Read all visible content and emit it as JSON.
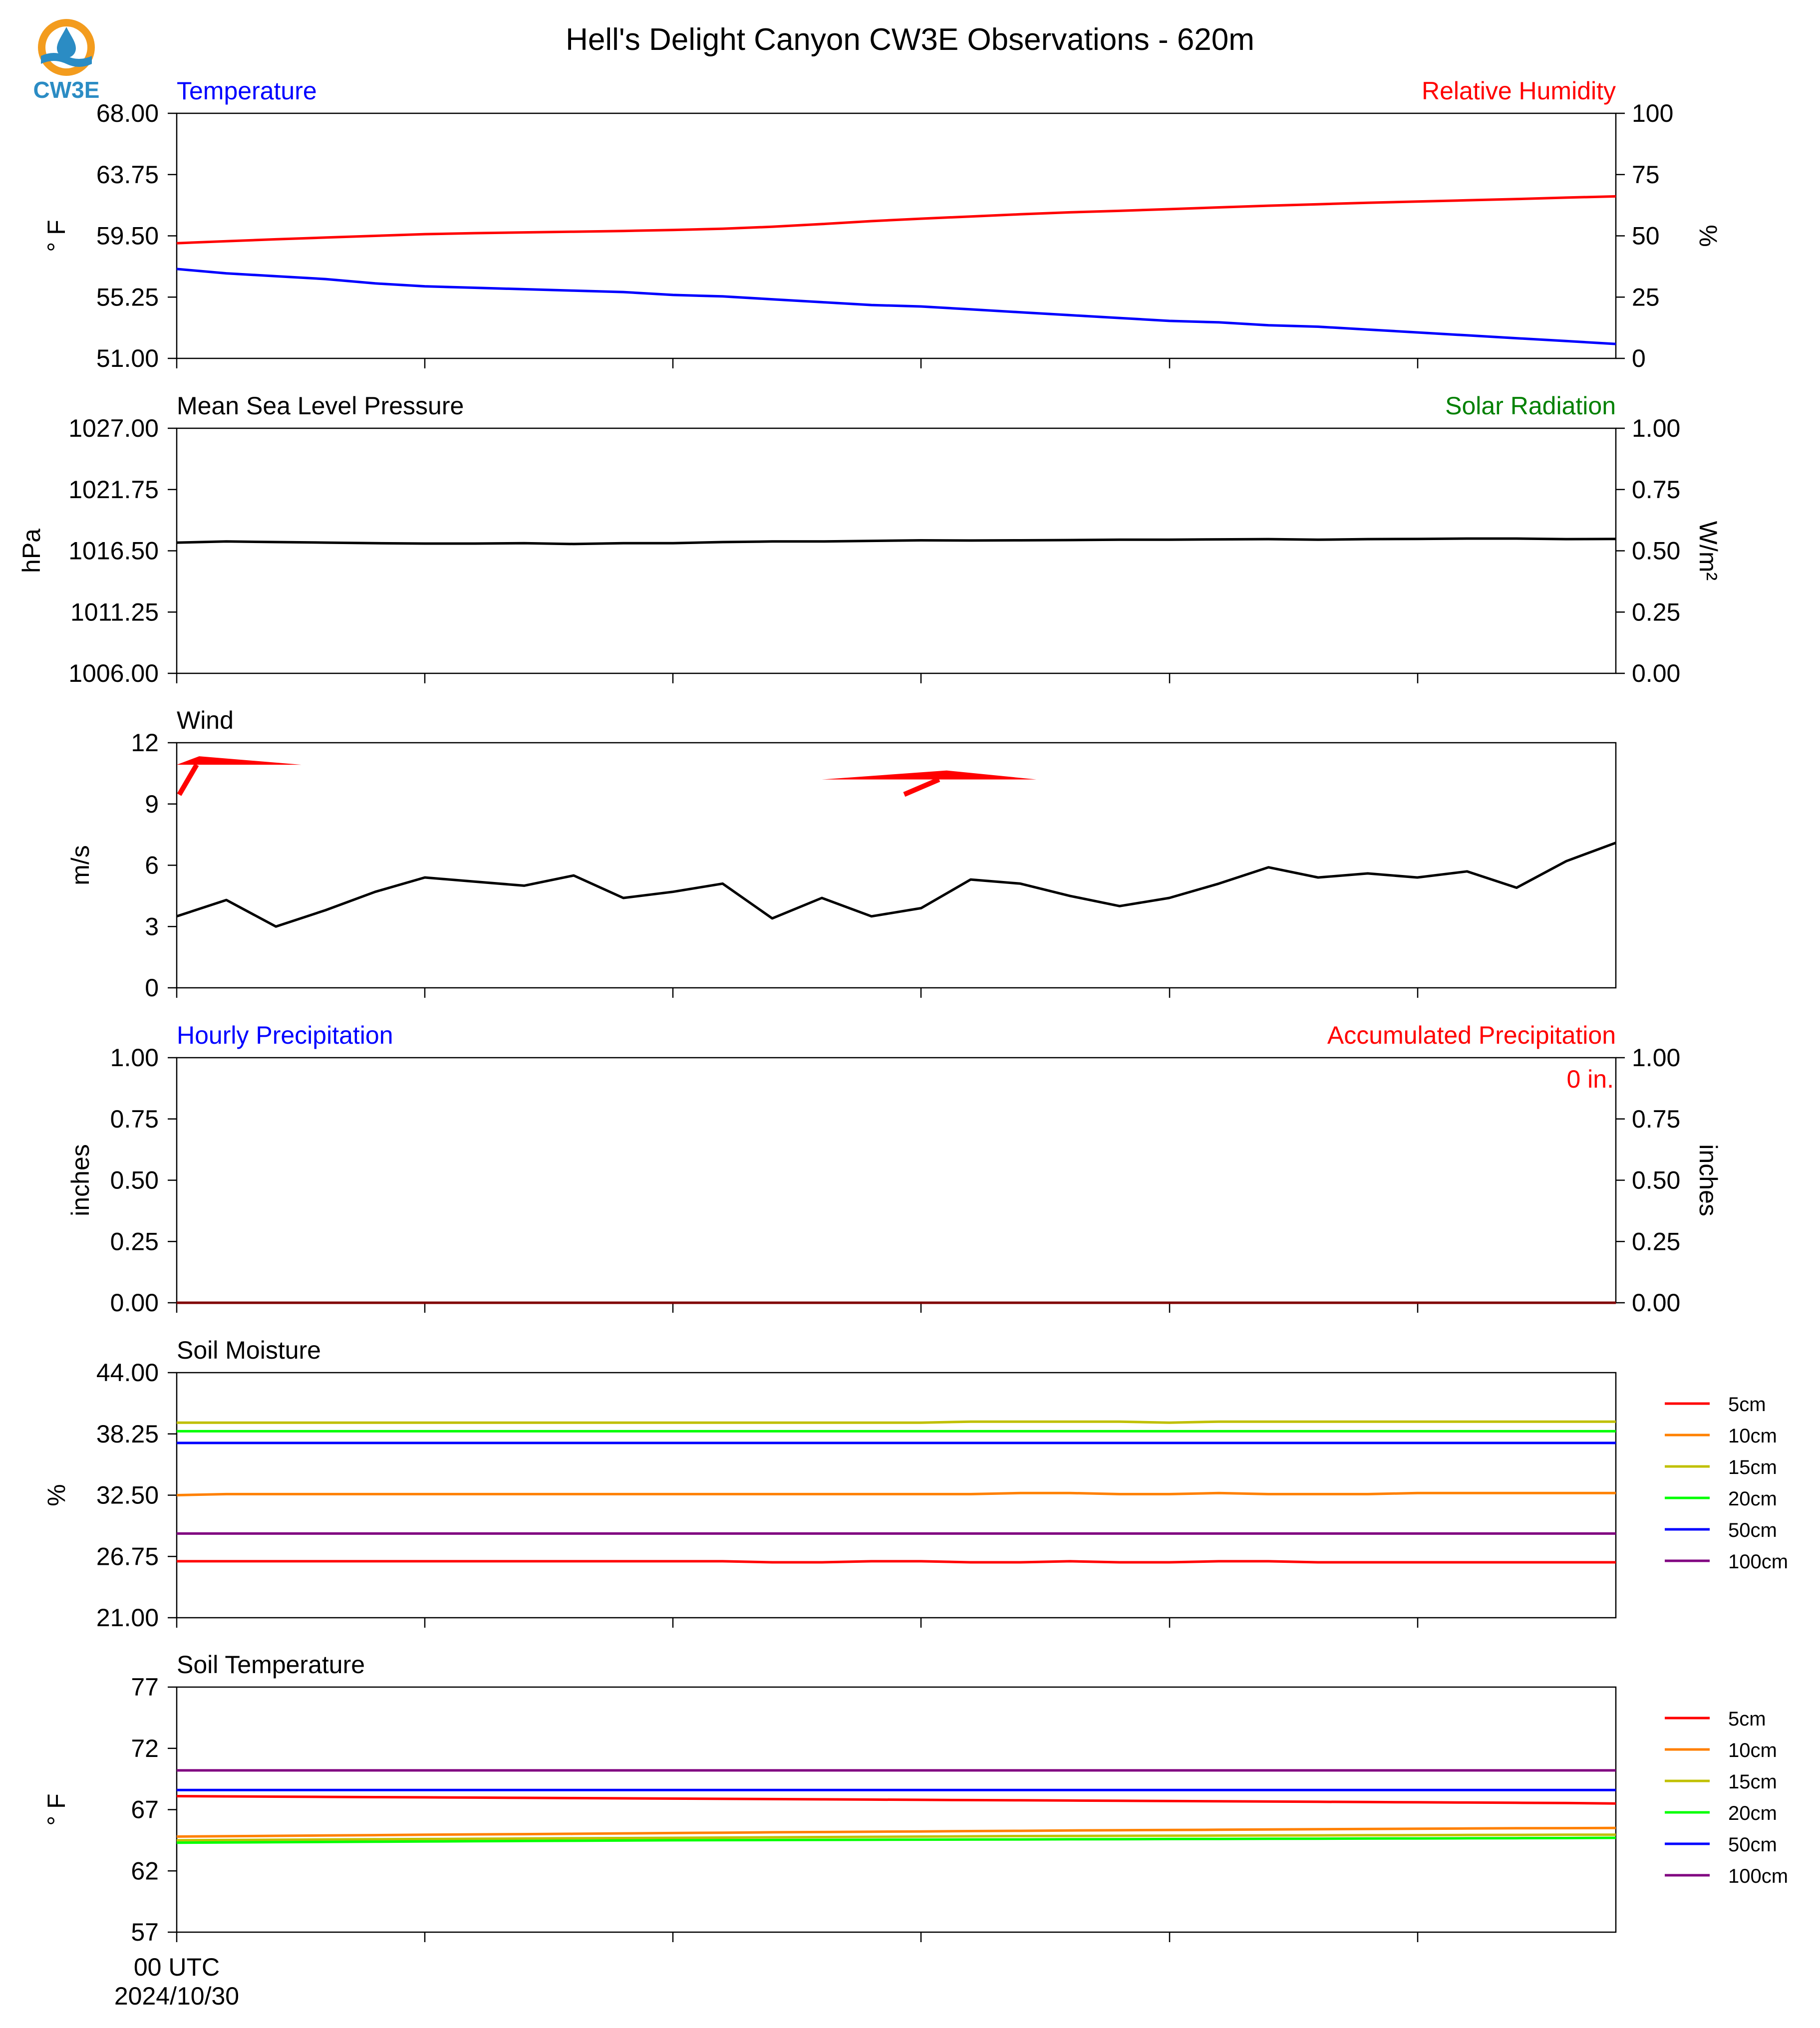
{
  "title": "Hell's Delight Canyon CW3E Observations - 620m",
  "logo": {
    "text": "CW3E",
    "icon": "water-drop-sun-icon",
    "orange": "#f39c1e",
    "blue": "#2b8cc4"
  },
  "colors": {
    "axis": "#000000",
    "blue": "#0000ff",
    "red": "#ff0000",
    "green": "#008000",
    "black": "#000000"
  },
  "x_axis": {
    "label_line1": "00 UTC",
    "label_line2": "2024/10/30"
  },
  "chart_data": [
    {
      "id": "temp-rh",
      "type": "line",
      "title_left": "Temperature",
      "title_left_color": "#0000ff",
      "title_right": "Relative Humidity",
      "title_right_color": "#ff0000",
      "ylabel_left": "° F",
      "ylabel_right": "%",
      "ylim": [
        51,
        68
      ],
      "yticks": [
        "68.00",
        "63.75",
        "59.50",
        "55.25",
        "51.00"
      ],
      "ylim_right": [
        0,
        100
      ],
      "yticks_right": [
        "100",
        "75",
        "50",
        "25",
        "0"
      ],
      "series": [
        {
          "axis": "right",
          "color": "#ff0000",
          "values": [
            47.0,
            47.8,
            48.6,
            49.3,
            50.0,
            50.7,
            51.1,
            51.4,
            51.7,
            52.0,
            52.4,
            52.9,
            53.7,
            54.8,
            56.0,
            57.0,
            57.9,
            58.8,
            59.6,
            60.2,
            60.9,
            61.6,
            62.3,
            62.9,
            63.5,
            64.0,
            64.5,
            65.0,
            65.6,
            66.1
          ]
        },
        {
          "axis": "left",
          "color": "#0000ff",
          "values": [
            57.2,
            56.9,
            56.7,
            56.5,
            56.2,
            56.0,
            55.9,
            55.8,
            55.7,
            55.6,
            55.4,
            55.3,
            55.1,
            54.9,
            54.7,
            54.6,
            54.4,
            54.2,
            54.0,
            53.8,
            53.6,
            53.5,
            53.3,
            53.2,
            53.0,
            52.8,
            52.6,
            52.4,
            52.2,
            52.0
          ]
        }
      ]
    },
    {
      "id": "pressure",
      "type": "line",
      "title_left": "Mean Sea Level Pressure",
      "title_left_color": "#000000",
      "title_right": "Solar Radiation",
      "title_right_color": "#008000",
      "ylabel_left": "hPa",
      "ylabel_right": "W/m²",
      "ylim": [
        1006,
        1027
      ],
      "yticks": [
        "1027.00",
        "1021.75",
        "1016.50",
        "1011.25",
        "1006.00"
      ],
      "ylim_right": [
        0,
        1
      ],
      "yticks_right": [
        "1.00",
        "0.75",
        "0.50",
        "0.25",
        "0.00"
      ],
      "series": [
        {
          "axis": "left",
          "color": "#000000",
          "values": [
            1017.2,
            1017.3,
            1017.25,
            1017.2,
            1017.15,
            1017.12,
            1017.12,
            1017.15,
            1017.08,
            1017.15,
            1017.15,
            1017.25,
            1017.3,
            1017.3,
            1017.35,
            1017.4,
            1017.38,
            1017.4,
            1017.42,
            1017.45,
            1017.45,
            1017.48,
            1017.5,
            1017.45,
            1017.5,
            1017.52,
            1017.55,
            1017.55,
            1017.5,
            1017.52
          ]
        }
      ]
    },
    {
      "id": "wind",
      "type": "line",
      "title_left": "Wind",
      "title_left_color": "#000000",
      "ylabel_left": "m/s",
      "ylim": [
        0,
        12
      ],
      "yticks": [
        "12",
        "9",
        "6",
        "3",
        "0"
      ],
      "series": [
        {
          "axis": "left",
          "color": "#000000",
          "values": [
            3.5,
            4.3,
            3.0,
            3.8,
            4.7,
            5.4,
            5.2,
            5.0,
            5.5,
            4.4,
            4.7,
            5.1,
            3.4,
            4.4,
            3.5,
            3.9,
            5.3,
            5.1,
            4.5,
            4.0,
            4.4,
            5.1,
            5.9,
            5.4,
            5.6,
            5.4,
            5.7,
            4.9,
            6.2,
            7.1
          ]
        }
      ],
      "barbs": [
        {
          "x": 0,
          "speed_ms": 10.8,
          "color": "#ff0000"
        },
        {
          "x": 13,
          "speed_ms": 10.2,
          "color": "#ff0000"
        }
      ]
    },
    {
      "id": "precip",
      "type": "line",
      "title_left": "Hourly Precipitation",
      "title_left_color": "#0000ff",
      "title_right": "Accumulated Precipitation",
      "title_right_color": "#ff0000",
      "ylabel_left": "inches",
      "ylabel_right": "inches",
      "ylim": [
        0,
        1
      ],
      "yticks": [
        "1.00",
        "0.75",
        "0.50",
        "0.25",
        "0.00"
      ],
      "ylim_right": [
        0,
        1
      ],
      "yticks_right": [
        "1.00",
        "0.75",
        "0.50",
        "0.25",
        "0.00"
      ],
      "annotation": "0 in.",
      "annotation_color": "#ff0000",
      "series": [
        {
          "axis": "left",
          "color": "#800000",
          "values": [
            0,
            0
          ]
        }
      ]
    },
    {
      "id": "soil-moisture",
      "type": "line",
      "title_left": "Soil Moisture",
      "title_left_color": "#000000",
      "ylabel_left": "%",
      "ylim": [
        21,
        44
      ],
      "yticks": [
        "44.00",
        "38.25",
        "32.50",
        "26.75",
        "21.00"
      ],
      "legend": "right",
      "series": [
        {
          "name": "5cm",
          "color": "#ff0000",
          "values": [
            26.3,
            26.3,
            26.3,
            26.3,
            26.3,
            26.3,
            26.3,
            26.3,
            26.3,
            26.3,
            26.3,
            26.3,
            26.2,
            26.2,
            26.3,
            26.3,
            26.2,
            26.2,
            26.3,
            26.2,
            26.2,
            26.3,
            26.3,
            26.2,
            26.2,
            26.2,
            26.2,
            26.2,
            26.2,
            26.2
          ]
        },
        {
          "name": "10cm",
          "color": "#ff8000",
          "values": [
            32.5,
            32.6,
            32.6,
            32.6,
            32.6,
            32.6,
            32.6,
            32.6,
            32.6,
            32.6,
            32.6,
            32.6,
            32.6,
            32.6,
            32.6,
            32.6,
            32.6,
            32.7,
            32.7,
            32.6,
            32.6,
            32.7,
            32.6,
            32.6,
            32.6,
            32.7,
            32.7,
            32.7,
            32.7,
            32.7
          ]
        },
        {
          "name": "15cm",
          "color": "#c0c000",
          "values": [
            39.3,
            39.3,
            39.3,
            39.3,
            39.3,
            39.3,
            39.3,
            39.3,
            39.3,
            39.3,
            39.3,
            39.3,
            39.3,
            39.3,
            39.3,
            39.3,
            39.4,
            39.4,
            39.4,
            39.4,
            39.3,
            39.4,
            39.4,
            39.4,
            39.4,
            39.4,
            39.4,
            39.4,
            39.4,
            39.4
          ]
        },
        {
          "name": "20cm",
          "color": "#00ff00",
          "values": [
            38.5,
            38.5,
            38.5,
            38.5,
            38.5,
            38.5,
            38.5,
            38.5,
            38.5,
            38.5,
            38.5,
            38.5,
            38.5,
            38.5,
            38.5,
            38.5,
            38.5,
            38.5,
            38.5,
            38.5,
            38.5,
            38.5,
            38.5,
            38.5,
            38.5,
            38.5,
            38.5,
            38.5,
            38.5,
            38.5
          ]
        },
        {
          "name": "50cm",
          "color": "#0000ff",
          "values": [
            37.4,
            37.4,
            37.4,
            37.4,
            37.4,
            37.4,
            37.4,
            37.4,
            37.4,
            37.4,
            37.4,
            37.4,
            37.4,
            37.4,
            37.4,
            37.4,
            37.4,
            37.4,
            37.4,
            37.4,
            37.4,
            37.4,
            37.4,
            37.4,
            37.4,
            37.4,
            37.4,
            37.4,
            37.4,
            37.4
          ]
        },
        {
          "name": "100cm",
          "color": "#800080",
          "values": [
            28.9,
            28.9,
            28.9,
            28.9,
            28.9,
            28.9,
            28.9,
            28.9,
            28.9,
            28.9,
            28.9,
            28.9,
            28.9,
            28.9,
            28.9,
            28.9,
            28.9,
            28.9,
            28.9,
            28.9,
            28.9,
            28.9,
            28.9,
            28.9,
            28.9,
            28.9,
            28.9,
            28.9,
            28.9,
            28.9
          ]
        }
      ]
    },
    {
      "id": "soil-temperature",
      "type": "line",
      "title_left": "Soil Temperature",
      "title_left_color": "#000000",
      "ylabel_left": "° F",
      "ylim": [
        57,
        77
      ],
      "yticks": [
        "77",
        "72",
        "67",
        "62",
        "57"
      ],
      "legend": "right",
      "series": [
        {
          "name": "5cm",
          "color": "#ff0000",
          "values": [
            68.1,
            68.08,
            68.06,
            68.04,
            68.02,
            68.0,
            67.98,
            67.96,
            67.94,
            67.92,
            67.9,
            67.88,
            67.86,
            67.84,
            67.82,
            67.8,
            67.78,
            67.76,
            67.74,
            67.72,
            67.7,
            67.68,
            67.66,
            67.64,
            67.62,
            67.6,
            67.58,
            67.56,
            67.54,
            67.5
          ]
        },
        {
          "name": "10cm",
          "color": "#ff8000",
          "values": [
            64.8,
            64.83,
            64.86,
            64.89,
            64.92,
            64.95,
            64.98,
            65.0,
            65.03,
            65.06,
            65.09,
            65.12,
            65.15,
            65.17,
            65.2,
            65.22,
            65.25,
            65.27,
            65.3,
            65.32,
            65.34,
            65.36,
            65.38,
            65.4,
            65.42,
            65.44,
            65.46,
            65.48,
            65.49,
            65.5
          ]
        },
        {
          "name": "15cm",
          "color": "#c0c000",
          "values": [
            64.5,
            64.52,
            64.54,
            64.56,
            64.58,
            64.6,
            64.62,
            64.64,
            64.66,
            64.68,
            64.7,
            64.72,
            64.74,
            64.76,
            64.78,
            64.8,
            64.82,
            64.84,
            64.85,
            64.86,
            64.87,
            64.88,
            64.89,
            64.9,
            64.91,
            64.92,
            64.93,
            64.94,
            64.95,
            64.95
          ]
        },
        {
          "name": "20cm",
          "color": "#00ff00",
          "values": [
            64.3,
            64.32,
            64.34,
            64.36,
            64.38,
            64.4,
            64.42,
            64.44,
            64.46,
            64.48,
            64.5,
            64.51,
            64.52,
            64.53,
            64.54,
            64.55,
            64.56,
            64.57,
            64.58,
            64.59,
            64.6,
            64.61,
            64.62,
            64.63,
            64.64,
            64.65,
            64.66,
            64.67,
            64.68,
            64.7
          ]
        },
        {
          "name": "50cm",
          "color": "#0000ff",
          "values": [
            68.6,
            68.6,
            68.6,
            68.6,
            68.6,
            68.6,
            68.6,
            68.6,
            68.6,
            68.6,
            68.6,
            68.6,
            68.6,
            68.6,
            68.6,
            68.6,
            68.6,
            68.6,
            68.6,
            68.6,
            68.6,
            68.6,
            68.6,
            68.6,
            68.6,
            68.6,
            68.6,
            68.6,
            68.6,
            68.6
          ]
        },
        {
          "name": "100cm",
          "color": "#800080",
          "values": [
            70.2,
            70.2,
            70.2,
            70.2,
            70.2,
            70.2,
            70.2,
            70.2,
            70.2,
            70.2,
            70.2,
            70.2,
            70.2,
            70.2,
            70.2,
            70.2,
            70.2,
            70.2,
            70.2,
            70.2,
            70.2,
            70.2,
            70.2,
            70.2,
            70.2,
            70.2,
            70.2,
            70.2,
            70.2,
            70.2
          ]
        }
      ]
    }
  ]
}
